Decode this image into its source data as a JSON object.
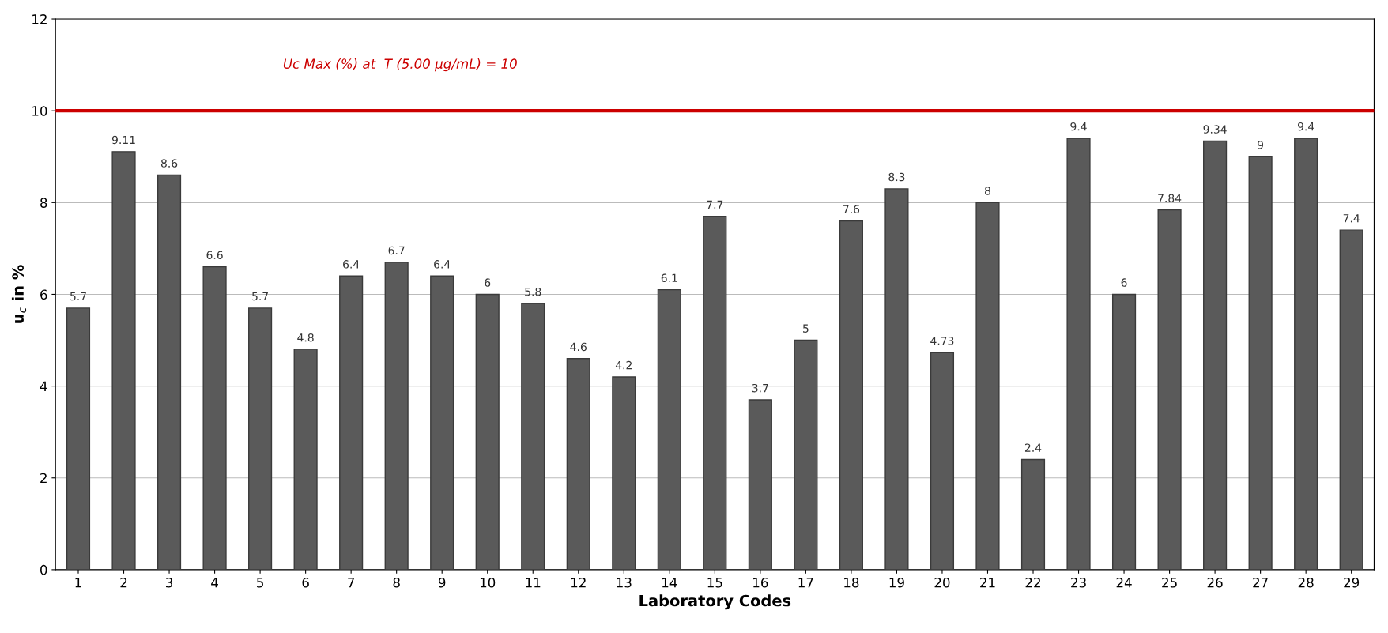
{
  "chart_data": {
    "type": "bar",
    "xlabel": "Laboratory Codes",
    "ylabel": "u$_{c}$ in %",
    "categories": [
      "1",
      "2",
      "3",
      "4",
      "5",
      "6",
      "7",
      "8",
      "9",
      "10",
      "11",
      "12",
      "13",
      "14",
      "15",
      "16",
      "17",
      "18",
      "19",
      "20",
      "21",
      "22",
      "23",
      "24",
      "25",
      "26",
      "27",
      "28",
      "29"
    ],
    "values": [
      5.7,
      9.11,
      8.6,
      6.6,
      5.7,
      4.8,
      6.4,
      6.7,
      6.4,
      6,
      5.8,
      4.6,
      4.2,
      6.1,
      7.7,
      3.7,
      5,
      7.6,
      8.3,
      4.73,
      8,
      2.4,
      9.4,
      6,
      7.84,
      9.34,
      9,
      9.4,
      7.4
    ],
    "color": "#5a5a5a",
    "ylim": [
      0,
      12
    ],
    "yticks": [
      0,
      2,
      4,
      6,
      8,
      10,
      12
    ],
    "grid": "y",
    "legend": false,
    "data_labels": true,
    "ref_lines": [
      {
        "axis": "y",
        "value": 10,
        "label": "Uc Max (%) at  T (5.00 µg/mL) = 10",
        "color": "#cc0000",
        "line_style": "solid"
      }
    ]
  }
}
